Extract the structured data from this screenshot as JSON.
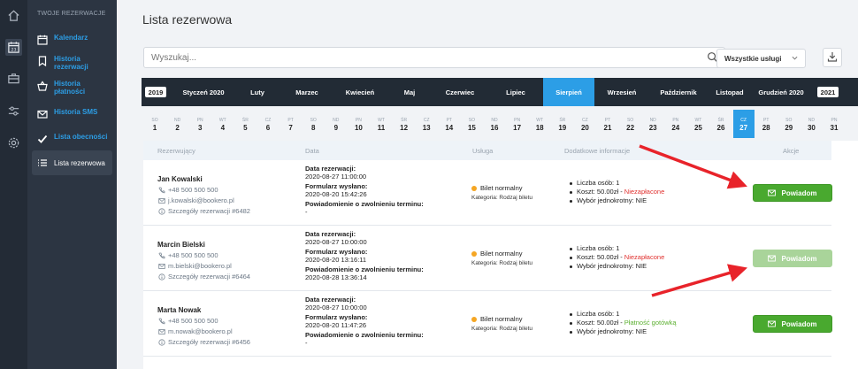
{
  "rail": {
    "icons": [
      "home-icon",
      "calendar-icon",
      "briefcase-icon",
      "sliders-icon",
      "gear-icon"
    ]
  },
  "sidebar": {
    "heading": "TWOJE REZERWACJE",
    "items": [
      {
        "label": "Kalendarz",
        "icon": "calendar-icon"
      },
      {
        "label": "Historia rezerwacji",
        "icon": "bookmark-icon"
      },
      {
        "label": "Historia płatności",
        "icon": "basket-icon"
      },
      {
        "label": "Historia SMS",
        "icon": "mail-icon"
      },
      {
        "label": "Lista obecności",
        "icon": "check-icon"
      },
      {
        "label": "Lista rezerwowa",
        "icon": "list-icon"
      }
    ]
  },
  "page": {
    "title": "Lista rezerwowa"
  },
  "search": {
    "placeholder": "Wyszukaj..."
  },
  "service_filter": {
    "selected": "Wszystkie usługi"
  },
  "months": {
    "prev_year": "2019",
    "next_year": "2021",
    "items": [
      "Styczeń 2020",
      "Luty",
      "Marzec",
      "Kwiecień",
      "Maj",
      "Czerwiec",
      "Lipiec",
      "Sierpień",
      "Wrzesień",
      "Październik",
      "Listopad",
      "Grudzień 2020"
    ],
    "active": "Sierpień"
  },
  "days": {
    "weekdays": [
      "SO",
      "ND",
      "PN",
      "WT",
      "ŚR",
      "CZ",
      "PT",
      "SO",
      "ND",
      "PN",
      "WT",
      "ŚR",
      "CZ",
      "PT",
      "SO",
      "ND",
      "PN",
      "WT",
      "ŚR",
      "CZ",
      "PT",
      "SO",
      "ND",
      "PN",
      "WT",
      "ŚR",
      "CZ",
      "PT",
      "SO",
      "ND",
      "PN"
    ],
    "numbers": [
      "1",
      "2",
      "3",
      "4",
      "5",
      "6",
      "7",
      "8",
      "9",
      "10",
      "11",
      "12",
      "13",
      "14",
      "15",
      "16",
      "17",
      "18",
      "19",
      "20",
      "21",
      "22",
      "23",
      "24",
      "25",
      "26",
      "27",
      "28",
      "29",
      "30",
      "31"
    ],
    "active": "27"
  },
  "table": {
    "headers": {
      "reserver": "Rezerwujący",
      "date": "Data",
      "service": "Usługa",
      "info": "Dodatkowe informacje",
      "actions": "Akcje"
    },
    "rows": [
      {
        "name": "Jan Kowalski",
        "phone": "+48 500 500 500",
        "email": "j.kowalski@bookero.pl",
        "details": "Szczegóły rezerwacji #6482",
        "reservation_label": "Data rezerwacji:",
        "reservation_date": "2020-08-27 11:00:00",
        "form_label": "Formularz wysłano:",
        "form_date": "2020-08-20 15:42:26",
        "notice_label": "Powiadomienie o zwolnieniu terminu:",
        "notice_value": "-",
        "service": "Bilet normalny",
        "category": "Kategoria: Rodzaj biletu",
        "persons": "Liczba osób: 1",
        "cost": "Koszt: 50.00zł - ",
        "payment": "Niezapłacone",
        "payment_status": "unpaid",
        "choice": "Wybór jednokrotny: NIE",
        "button": "Powiadom",
        "button_disabled": false
      },
      {
        "name": "Marcin Bielski",
        "phone": "+48 500 500 500",
        "email": "m.bielski@bookero.pl",
        "details": "Szczegóły rezerwacji #6464",
        "reservation_label": "Data rezerwacji:",
        "reservation_date": "2020-08-27 10:00:00",
        "form_label": "Formularz wysłano:",
        "form_date": "2020-08-20 13:16:11",
        "notice_label": "Powiadomienie o zwolnieniu terminu:",
        "notice_value": "2020-08-28 13:36:14",
        "service": "Bilet normalny",
        "category": "Kategoria: Rodzaj biletu",
        "persons": "Liczba osób: 1",
        "cost": "Koszt: 50.00zł - ",
        "payment": "Niezapłacone",
        "payment_status": "unpaid",
        "choice": "Wybór jednokrotny: NIE",
        "button": "Powiadom",
        "button_disabled": true
      },
      {
        "name": "Marta Nowak",
        "phone": "+48 500 500 500",
        "email": "m.nowak@bookero.pl",
        "details": "Szczegóły rezerwacji #6456",
        "reservation_label": "Data rezerwacji:",
        "reservation_date": "2020-08-27 10:00:00",
        "form_label": "Formularz wysłano:",
        "form_date": "2020-08-20 11:47:26",
        "notice_label": "Powiadomienie o zwolnieniu terminu:",
        "notice_value": "-",
        "service": "Bilet normalny",
        "category": "Kategoria: Rodzaj biletu",
        "persons": "Liczba osób: 1",
        "cost": "Koszt: 50.00zł - ",
        "payment": "Płatność gotówką",
        "payment_status": "paid",
        "choice": "Wybór jednokrotny: NIE",
        "button": "Powiadom",
        "button_disabled": false
      }
    ]
  },
  "colors": {
    "accent": "#2c9ee6",
    "sidebar": "#2c3542",
    "rail": "#232b36",
    "button": "#49a92f",
    "unpaid": "#e0302e",
    "paid": "#5cb031",
    "annotation_arrow": "#e8232a"
  }
}
